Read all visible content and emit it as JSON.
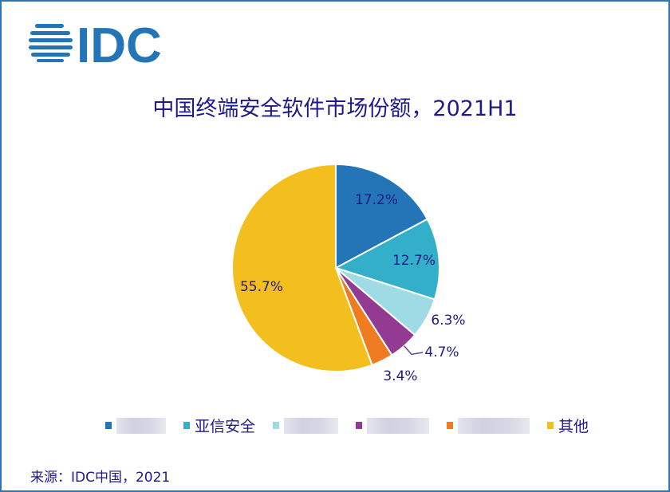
{
  "logo": "IDC",
  "chart_data": {
    "type": "pie",
    "title": "中国终端安全软件市场份额，2021H1",
    "start": "top",
    "direction": "clockwise",
    "slices": [
      {
        "name": "",
        "value": 17.2,
        "label": "17.2%",
        "color": "#2474b8",
        "blurred": true
      },
      {
        "name": "亚信安全",
        "value": 12.7,
        "label": "12.7%",
        "color": "#33afc9",
        "blurred": false
      },
      {
        "name": "",
        "value": 6.3,
        "label": "6.3%",
        "color": "#9fdbe5",
        "blurred": true
      },
      {
        "name": "",
        "value": 4.7,
        "label": "4.7%",
        "color": "#933a92",
        "blurred": true
      },
      {
        "name": "",
        "value": 3.4,
        "label": "3.4%",
        "color": "#f07c22",
        "blurred": true
      },
      {
        "name": "其他",
        "value": 55.7,
        "label": "55.7%",
        "color": "#f2bf1f",
        "blurred": false
      }
    ],
    "legend": "bottom"
  },
  "source": "来源：IDC中国，2021"
}
